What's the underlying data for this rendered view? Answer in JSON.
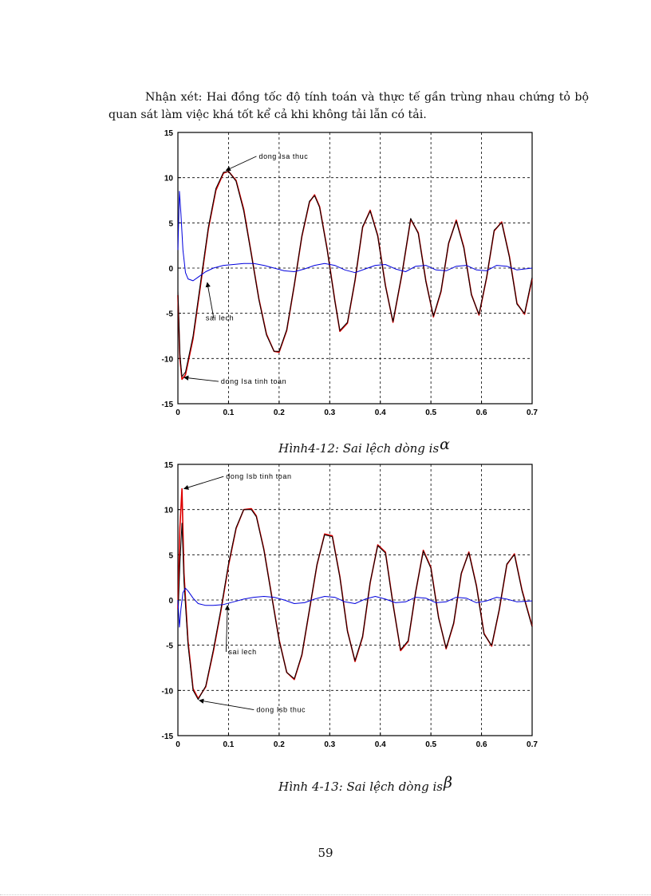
{
  "paragraph": {
    "text": "Nhận xét: Hai đồng  tốc độ tính toán và thực tế gần trùng nhau chứng tỏ bộ quan sát làm việc khá tốt kể cả khi không tải lẫn có tải."
  },
  "figures": [
    {
      "caption_text": "Hình4-12: Sai lệch dòng is",
      "caption_symbol": "α"
    },
    {
      "caption_text": "Hình 4-13: Sai lệch dòng is",
      "caption_symbol": "β"
    }
  ],
  "page_number": "59",
  "colors": {
    "actual": "#000000",
    "estimated": "#dd0000",
    "error": "#0000dd",
    "grid": "#000000"
  },
  "chart_data": [
    {
      "type": "line",
      "title": "",
      "xlabel": "",
      "ylabel": "",
      "xlim": [
        0,
        0.7
      ],
      "ylim": [
        -15,
        15
      ],
      "xticks": [
        "0",
        "0.1",
        "0.2",
        "0.3",
        "0.4",
        "0.5",
        "0.6",
        "0.7"
      ],
      "yticks": [
        "15",
        "10",
        "5",
        "0",
        "-5",
        "-10",
        "-15"
      ],
      "grid": true,
      "annotations": [
        {
          "text": "dong Isa thuc",
          "x": 0.16,
          "y": 12.1,
          "ax": 0.095,
          "ay": 10.8
        },
        {
          "text": "sai lech",
          "x": 0.055,
          "y": -5.8,
          "ax": 0.058,
          "ay": -1.6
        },
        {
          "text": "dong Isa tinh toan",
          "x": 0.085,
          "y": -12.8,
          "ax": 0.012,
          "ay": -12.1
        }
      ],
      "series": [
        {
          "role": "actual",
          "x": [
            0,
            0.004,
            0.008,
            0.015,
            0.03,
            0.045,
            0.06,
            0.075,
            0.09,
            0.1,
            0.115,
            0.13,
            0.145,
            0.16,
            0.175,
            0.19,
            0.2,
            0.215,
            0.23,
            0.245,
            0.26,
            0.27,
            0.28,
            0.295,
            0.31,
            0.32,
            0.335,
            0.35,
            0.365,
            0.38,
            0.395,
            0.41,
            0.425,
            0.443,
            0.46,
            0.475,
            0.49,
            0.505,
            0.52,
            0.535,
            0.55,
            0.565,
            0.58,
            0.595,
            0.61,
            0.625,
            0.64,
            0.655,
            0.67,
            0.685,
            0.7
          ],
          "y": [
            -2.5,
            -9.5,
            -12.0,
            -11.5,
            -7.5,
            -1.5,
            4.5,
            8.8,
            10.6,
            10.7,
            9.6,
            6.3,
            1.5,
            -3.5,
            -7.4,
            -9.2,
            -9.2,
            -6.8,
            -1.8,
            3.6,
            7.4,
            8.0,
            6.7,
            2.0,
            -3.6,
            -6.9,
            -6.0,
            -1.3,
            4.6,
            6.3,
            3.5,
            -2.0,
            -5.9,
            -0.5,
            5.5,
            3.8,
            -1.5,
            -5.3,
            -2.5,
            2.8,
            5.2,
            2.2,
            -3.0,
            -5.1,
            -1.0,
            4.2,
            5.0,
            1.2,
            -4.0,
            -5.0,
            -1.0
          ]
        },
        {
          "role": "estimated",
          "x": [
            0,
            0.004,
            0.008,
            0.015,
            0.03,
            0.045,
            0.06,
            0.075,
            0.09,
            0.1,
            0.115,
            0.13,
            0.145,
            0.16,
            0.175,
            0.19,
            0.2,
            0.215,
            0.23,
            0.245,
            0.26,
            0.27,
            0.28,
            0.295,
            0.31,
            0.32,
            0.335,
            0.35,
            0.365,
            0.38,
            0.395,
            0.41,
            0.425,
            0.443,
            0.46,
            0.475,
            0.49,
            0.505,
            0.52,
            0.535,
            0.55,
            0.565,
            0.58,
            0.595,
            0.61,
            0.625,
            0.64,
            0.655,
            0.67,
            0.685,
            0.7
          ],
          "y": [
            -3.0,
            -10.0,
            -12.3,
            -11.8,
            -7.8,
            -1.8,
            4.3,
            8.6,
            10.5,
            10.7,
            9.7,
            6.5,
            1.6,
            -3.4,
            -7.3,
            -9.2,
            -9.3,
            -6.9,
            -1.9,
            3.5,
            7.3,
            8.1,
            6.8,
            2.1,
            -3.5,
            -7.0,
            -6.1,
            -1.4,
            4.5,
            6.4,
            3.6,
            -1.9,
            -6.0,
            -0.6,
            5.4,
            3.9,
            -1.4,
            -5.4,
            -2.6,
            2.7,
            5.3,
            2.3,
            -2.9,
            -5.2,
            -1.1,
            4.1,
            5.1,
            1.3,
            -3.9,
            -5.1,
            -1.2
          ]
        },
        {
          "role": "error",
          "x": [
            0,
            0.003,
            0.006,
            0.01,
            0.015,
            0.02,
            0.03,
            0.04,
            0.055,
            0.07,
            0.09,
            0.11,
            0.13,
            0.15,
            0.17,
            0.19,
            0.21,
            0.23,
            0.25,
            0.27,
            0.29,
            0.31,
            0.33,
            0.35,
            0.37,
            0.39,
            0.41,
            0.43,
            0.45,
            0.47,
            0.49,
            0.51,
            0.53,
            0.55,
            0.57,
            0.59,
            0.61,
            0.63,
            0.65,
            0.67,
            0.7
          ],
          "y": [
            2.0,
            8.5,
            6.0,
            2.0,
            -0.5,
            -1.2,
            -1.4,
            -1.0,
            -0.4,
            0.0,
            0.3,
            0.4,
            0.5,
            0.5,
            0.3,
            0.0,
            -0.3,
            -0.4,
            -0.1,
            0.3,
            0.5,
            0.3,
            -0.2,
            -0.5,
            -0.1,
            0.3,
            0.4,
            -0.1,
            -0.4,
            0.2,
            0.3,
            -0.2,
            -0.3,
            0.2,
            0.3,
            -0.2,
            -0.3,
            0.3,
            0.2,
            -0.2,
            0.0
          ]
        }
      ]
    },
    {
      "type": "line",
      "title": "",
      "xlabel": "",
      "ylabel": "",
      "xlim": [
        0,
        0.7
      ],
      "ylim": [
        -15,
        15
      ],
      "xticks": [
        "0",
        "0.1",
        "0.2",
        "0.3",
        "0.4",
        "0.5",
        "0.6",
        "0.7"
      ],
      "yticks": [
        "15",
        "10",
        "5",
        "0",
        "-5",
        "-10",
        "-15"
      ],
      "grid": true,
      "annotations": [
        {
          "text": "dong Isb tinh toan",
          "x": 0.095,
          "y": 13.4,
          "ax": 0.012,
          "ay": 12.3
        },
        {
          "text": "sai lech",
          "x": 0.1,
          "y": -6.0,
          "ax": 0.098,
          "ay": -0.6
        },
        {
          "text": "dong Isb thuc",
          "x": 0.155,
          "y": -12.4,
          "ax": 0.042,
          "ay": -11.1
        }
      ],
      "series": [
        {
          "role": "actual",
          "x": [
            0,
            0.004,
            0.008,
            0.012,
            0.02,
            0.03,
            0.04,
            0.055,
            0.07,
            0.085,
            0.1,
            0.115,
            0.13,
            0.145,
            0.155,
            0.17,
            0.185,
            0.2,
            0.215,
            0.23,
            0.245,
            0.26,
            0.275,
            0.29,
            0.305,
            0.32,
            0.335,
            0.35,
            0.365,
            0.38,
            0.395,
            0.41,
            0.425,
            0.44,
            0.455,
            0.47,
            0.485,
            0.5,
            0.515,
            0.53,
            0.545,
            0.56,
            0.575,
            0.59,
            0.605,
            0.62,
            0.635,
            0.65,
            0.665,
            0.68,
            0.7
          ],
          "y": [
            -2.0,
            4.0,
            8.5,
            2.0,
            -5.0,
            -10.0,
            -11.0,
            -9.5,
            -5.5,
            -1.0,
            4.0,
            8.0,
            10.0,
            10.0,
            9.2,
            5.5,
            0.5,
            -4.5,
            -8.0,
            -8.7,
            -6.0,
            -1.0,
            4.0,
            7.2,
            7.0,
            2.5,
            -3.5,
            -6.7,
            -4.0,
            2.0,
            6.0,
            5.2,
            -0.5,
            -5.5,
            -4.5,
            1.0,
            5.4,
            3.5,
            -2.0,
            -5.3,
            -2.5,
            3.0,
            5.2,
            1.5,
            -3.8,
            -5.0,
            -1.0,
            4.0,
            5.0,
            1.0,
            -3.0
          ]
        },
        {
          "role": "estimated",
          "x": [
            0,
            0.004,
            0.008,
            0.012,
            0.02,
            0.03,
            0.04,
            0.055,
            0.07,
            0.085,
            0.1,
            0.115,
            0.13,
            0.145,
            0.155,
            0.17,
            0.185,
            0.2,
            0.215,
            0.23,
            0.245,
            0.26,
            0.275,
            0.29,
            0.305,
            0.32,
            0.335,
            0.35,
            0.365,
            0.38,
            0.395,
            0.41,
            0.425,
            0.44,
            0.455,
            0.47,
            0.485,
            0.5,
            0.515,
            0.53,
            0.545,
            0.56,
            0.575,
            0.59,
            0.605,
            0.62,
            0.635,
            0.65,
            0.665,
            0.68,
            0.7
          ],
          "y": [
            -1.0,
            8.0,
            12.3,
            3.0,
            -4.6,
            -9.8,
            -10.9,
            -9.6,
            -5.7,
            -1.2,
            3.8,
            7.9,
            10.0,
            10.1,
            9.3,
            5.6,
            0.6,
            -4.4,
            -8.0,
            -8.8,
            -6.1,
            -1.1,
            3.9,
            7.3,
            7.1,
            2.6,
            -3.4,
            -6.8,
            -4.1,
            1.9,
            6.1,
            5.3,
            -0.4,
            -5.6,
            -4.6,
            0.9,
            5.5,
            3.6,
            -1.9,
            -5.4,
            -2.6,
            2.9,
            5.3,
            1.6,
            -3.7,
            -5.1,
            -1.1,
            3.9,
            5.1,
            1.1,
            -2.9
          ]
        },
        {
          "role": "error",
          "x": [
            0,
            0.003,
            0.006,
            0.01,
            0.015,
            0.02,
            0.03,
            0.04,
            0.055,
            0.07,
            0.09,
            0.11,
            0.13,
            0.15,
            0.17,
            0.19,
            0.21,
            0.23,
            0.25,
            0.27,
            0.29,
            0.31,
            0.33,
            0.35,
            0.37,
            0.39,
            0.41,
            0.43,
            0.45,
            0.47,
            0.49,
            0.51,
            0.53,
            0.55,
            0.57,
            0.59,
            0.61,
            0.63,
            0.65,
            0.67,
            0.7
          ],
          "y": [
            0.0,
            -3.0,
            -1.0,
            0.8,
            1.3,
            1.0,
            0.2,
            -0.4,
            -0.6,
            -0.6,
            -0.5,
            -0.2,
            0.1,
            0.3,
            0.4,
            0.3,
            0.0,
            -0.4,
            -0.3,
            0.1,
            0.4,
            0.3,
            -0.2,
            -0.4,
            0.1,
            0.4,
            0.1,
            -0.3,
            -0.2,
            0.3,
            0.2,
            -0.3,
            -0.2,
            0.3,
            0.2,
            -0.3,
            -0.1,
            0.3,
            0.1,
            -0.2,
            -0.1
          ]
        }
      ]
    }
  ]
}
